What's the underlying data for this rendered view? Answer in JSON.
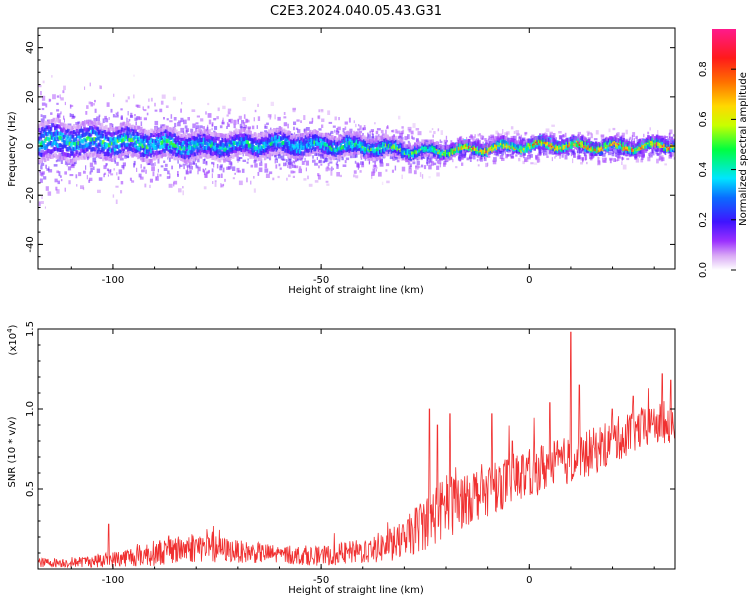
{
  "figure_title": "C2E3.2024.040.05.43.G31",
  "chart_data": [
    {
      "type": "heatmap",
      "title": "",
      "xlabel": "Height of straight line (km)",
      "ylabel": "Frequency (Hz)",
      "xlim": [
        -118,
        35
      ],
      "ylim": [
        -50,
        48
      ],
      "x_ticks": [
        -100,
        -50,
        0
      ],
      "y_ticks": [
        -40,
        -20,
        0,
        20,
        40
      ],
      "grid": false,
      "colorbar": {
        "label": "Normalized spectral amplitude",
        "range": [
          0,
          0.96
        ],
        "ticks": [
          0.0,
          0.2,
          0.4,
          0.6,
          0.8
        ],
        "colormap": "rainbow (white-violet-blue-cyan-green-yellow-red-magenta)"
      },
      "ridge": {
        "description_points_x": [
          -118,
          -100,
          -80,
          -60,
          -40,
          -25,
          -15,
          -5,
          5,
          15,
          25,
          35
        ],
        "center_frequency_hz": [
          2,
          2,
          0,
          1,
          0,
          -2,
          -1,
          0,
          1,
          0,
          0,
          1
        ],
        "peak_amplitude": [
          0.45,
          0.5,
          0.45,
          0.45,
          0.5,
          0.55,
          0.9,
          0.8,
          0.9,
          0.95,
          0.9,
          0.9
        ],
        "spread_hz": [
          12,
          10,
          8,
          7,
          6,
          4,
          3,
          3,
          3,
          3,
          3,
          3
        ]
      }
    },
    {
      "type": "line",
      "title": "",
      "xlabel": "Height of straight line (km)",
      "ylabel": "SNR (10 * v/v)",
      "y_multiplier_label": "(x10",
      "y_multiplier_exp": "4",
      "y_multiplier_close": ")",
      "xlim": [
        -118,
        35
      ],
      "ylim": [
        0,
        1.5
      ],
      "x_ticks": [
        -100,
        -50,
        0
      ],
      "y_ticks": [
        0.5,
        1.0,
        1.5
      ],
      "y_tick_labels": [
        "0.5",
        "1.0",
        "1.5"
      ],
      "grid": false,
      "series": [
        {
          "color": "#f03030",
          "envelope_x": [
            -118,
            -110,
            -100,
            -90,
            -80,
            -70,
            -60,
            -50,
            -40,
            -35,
            -30,
            -25,
            -20,
            -15,
            -10,
            -5,
            0,
            5,
            10,
            15,
            20,
            25,
            30,
            35
          ],
          "envelope_y": [
            0.04,
            0.04,
            0.06,
            0.1,
            0.14,
            0.11,
            0.09,
            0.08,
            0.11,
            0.14,
            0.18,
            0.3,
            0.38,
            0.45,
            0.5,
            0.55,
            0.6,
            0.65,
            0.68,
            0.73,
            0.8,
            0.86,
            0.9,
            0.92
          ],
          "noise_amplitude": [
            0.03,
            0.03,
            0.05,
            0.08,
            0.1,
            0.07,
            0.06,
            0.06,
            0.08,
            0.1,
            0.12,
            0.18,
            0.2,
            0.18,
            0.17,
            0.16,
            0.16,
            0.16,
            0.15,
            0.15,
            0.14,
            0.14,
            0.13,
            0.13
          ],
          "spikes": [
            [
              -101,
              0.28
            ],
            [
              -24,
              1.0
            ],
            [
              -22,
              0.9
            ],
            [
              -19,
              0.97
            ],
            [
              -9,
              0.97
            ],
            [
              -4,
              0.8
            ],
            [
              5,
              1.04
            ],
            [
              10,
              1.48
            ],
            [
              12,
              1.15
            ],
            [
              20,
              1.0
            ],
            [
              25,
              1.08
            ],
            [
              32,
              1.22
            ],
            [
              34,
              1.18
            ]
          ]
        }
      ]
    }
  ]
}
